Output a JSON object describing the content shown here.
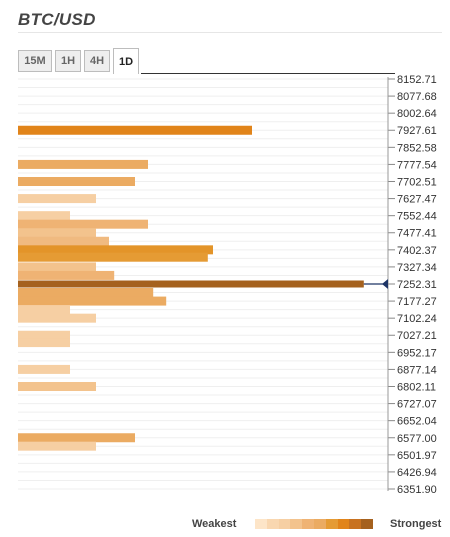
{
  "header": {
    "title": "BTC/USD"
  },
  "tabs": [
    {
      "label": "15M",
      "active": false
    },
    {
      "label": "1H",
      "active": false
    },
    {
      "label": "4H",
      "active": false
    },
    {
      "label": "1D",
      "active": true
    }
  ],
  "chart_data": {
    "type": "bar",
    "orientation": "horizontal",
    "title": "BTC/USD",
    "ylabel": "",
    "xlabel": "",
    "price_ticks": [
      "8152.71",
      "8077.68",
      "8002.64",
      "7927.61",
      "7852.58",
      "7777.54",
      "7702.51",
      "7627.47",
      "7552.44",
      "7477.41",
      "7402.37",
      "7327.34",
      "7252.31",
      "7177.27",
      "7102.24",
      "7027.21",
      "6952.17",
      "6877.14",
      "6802.11",
      "6727.07",
      "6652.04",
      "6577.00",
      "6501.97",
      "6426.94",
      "6351.90"
    ],
    "ylim": [
      6351.9,
      8152.71
    ],
    "current_price": 7252.31,
    "bars": [
      {
        "price": 7927.61,
        "strength": 9,
        "color": "#e1841a"
      },
      {
        "price": 7777.54,
        "strength": 5,
        "color": "#ebab62"
      },
      {
        "price": 7702.51,
        "strength": 4.5,
        "color": "#ebab62"
      },
      {
        "price": 7627.47,
        "strength": 3,
        "color": "#f6cfa3"
      },
      {
        "price": 7552.44,
        "strength": 2,
        "color": "#f6cfa3"
      },
      {
        "price": 7515.0,
        "strength": 5,
        "color": "#efb374"
      },
      {
        "price": 7477.41,
        "strength": 3,
        "color": "#f3c38d"
      },
      {
        "price": 7440.0,
        "strength": 3.5,
        "color": "#f0ba80"
      },
      {
        "price": 7402.37,
        "strength": 7.5,
        "color": "#e39429"
      },
      {
        "price": 7370.0,
        "strength": 7.3,
        "color": "#e59b34"
      },
      {
        "price": 7327.34,
        "strength": 3,
        "color": "#f3c38d"
      },
      {
        "price": 7290.0,
        "strength": 3.7,
        "color": "#efb374"
      },
      {
        "price": 7252.31,
        "strength": 13.3,
        "color": "#a5611e"
      },
      {
        "price": 7215.0,
        "strength": 5.2,
        "color": "#ebab62"
      },
      {
        "price": 7177.27,
        "strength": 5.7,
        "color": "#ebab62"
      },
      {
        "price": 7140.0,
        "strength": 2,
        "color": "#f6cfa3"
      },
      {
        "price": 7102.24,
        "strength": 3,
        "color": "#f6cfa3"
      },
      {
        "price": 7027.21,
        "strength": 2,
        "color": "#f6cfa3"
      },
      {
        "price": 6995.0,
        "strength": 2,
        "color": "#f6cfa3"
      },
      {
        "price": 6877.14,
        "strength": 2,
        "color": "#f6cfa3"
      },
      {
        "price": 6802.11,
        "strength": 3,
        "color": "#f3c38d"
      },
      {
        "price": 6577.0,
        "strength": 4.5,
        "color": "#ebab62"
      },
      {
        "price": 6540.0,
        "strength": 3,
        "color": "#f6cfa3"
      }
    ]
  },
  "legend": {
    "weakest_label": "Weakest",
    "strongest_label": "Strongest",
    "scale_colors": [
      "#fde5c8",
      "#f9d7b0",
      "#f6cfa3",
      "#f3c38d",
      "#efb374",
      "#ebab62",
      "#e59b34",
      "#e1841a",
      "#c87220",
      "#a5611e"
    ]
  },
  "colors": {
    "marker": "#1e3566",
    "grid": "#efefef"
  }
}
